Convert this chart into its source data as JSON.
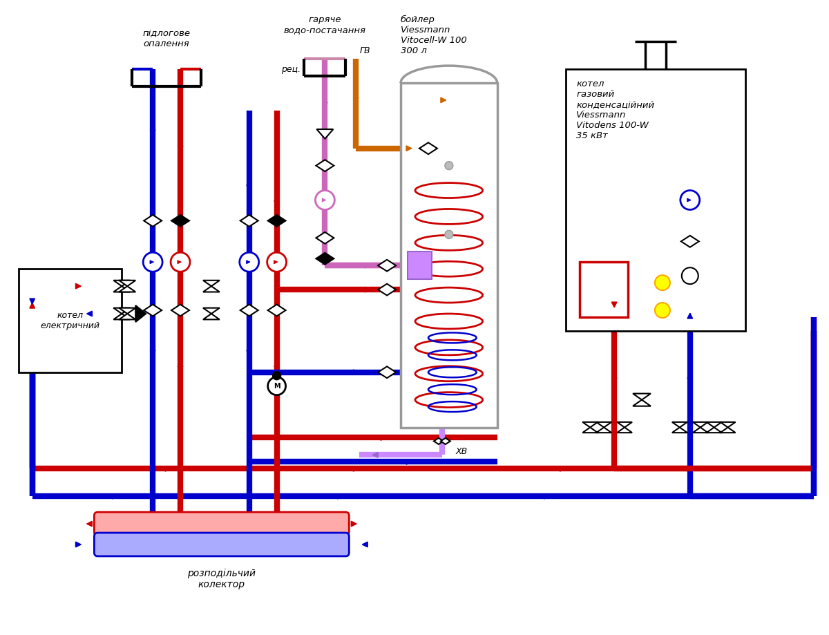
{
  "bg": "#ffffff",
  "red": "#cc0000",
  "blue": "#0000cc",
  "pink": "#cc66bb",
  "orange": "#cc6600",
  "purple": "#9966cc",
  "gray": "#999999",
  "black": "#000000",
  "yellow": "#ffff00",
  "lw": 6,
  "lw2": 3,
  "labels": {
    "pidlogove": "підлогове\nопалення",
    "garyache": "гаряче\nводо-постачання",
    "boyler": "бойлер\nViessmann\nVitocell-W 100\n300 л",
    "kotel_gaz": "котел\nгазовий\nконденсаційний\nViessmann\nVitodens 100-W\n35 кВт",
    "kotel_el": "котел\nелектричний",
    "kollektor": "розподільчий\nколектор",
    "rec": "рец.",
    "gv": "ГВ",
    "xv": "ХВ"
  }
}
